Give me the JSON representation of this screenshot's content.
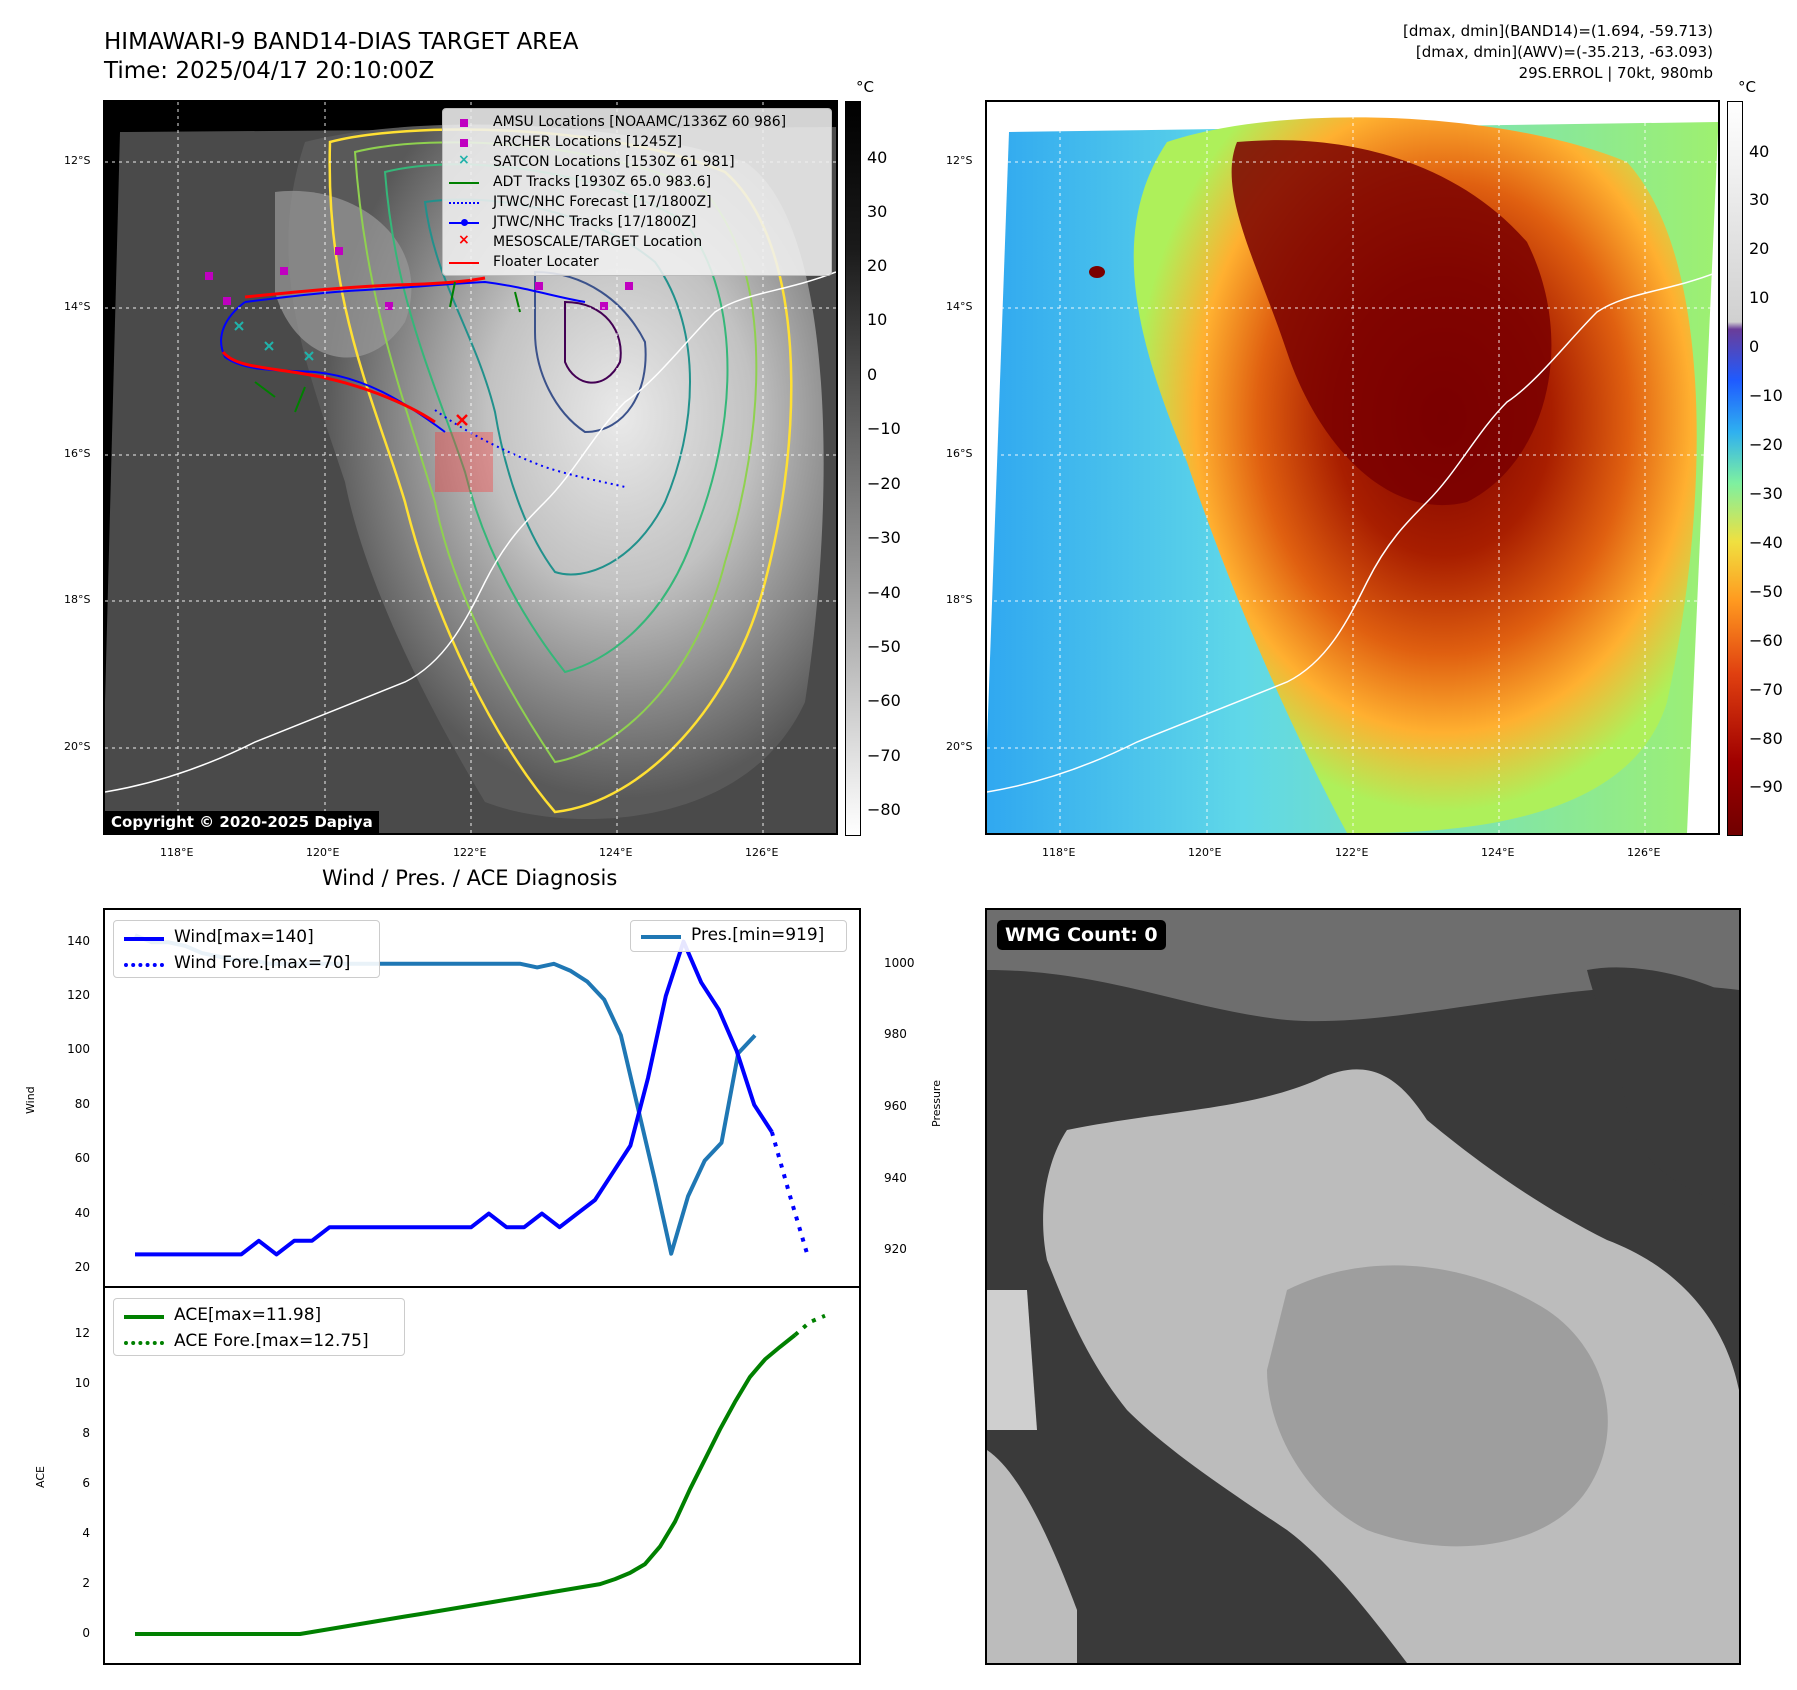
{
  "header": {
    "title_line1": "HIMAWARI-9 BAND14-DIAS TARGET AREA",
    "title_line2": "Time: 2025/04/17 20:10:00Z",
    "info_line1": "[dmax, dmin](BAND14)=(1.694, -59.713)",
    "info_line2": "[dmax, dmin](AWV)=(-35.213, -63.093)",
    "info_line3": "29S.ERROL | 70kt, 980mb"
  },
  "maps": {
    "lat_ticks": [
      "12°S",
      "14°S",
      "16°S",
      "18°S",
      "20°S"
    ],
    "lon_ticks": [
      "118°E",
      "120°E",
      "122°E",
      "124°E",
      "126°E"
    ],
    "copyright": "Copyright © 2020-2025 Dapiya",
    "colorbar_unit": "°C",
    "left_colorbar_ticks": [
      "40",
      "30",
      "20",
      "10",
      "0",
      "−10",
      "−20",
      "−30",
      "−40",
      "−50",
      "−60",
      "−70",
      "−80"
    ],
    "right_colorbar_ticks": [
      "40",
      "30",
      "20",
      "10",
      "0",
      "−10",
      "−20",
      "−30",
      "−40",
      "−50",
      "−60",
      "−70",
      "−80",
      "−90"
    ],
    "legend": [
      {
        "label": "AMSU Locations [NOAAMC/1336Z 60 986]",
        "color": "#c000c0",
        "marker": "square"
      },
      {
        "label": "ARCHER Locations [1245Z]",
        "color": "#c000c0",
        "marker": "square"
      },
      {
        "label": "SATCON Locations [1530Z 61 981]",
        "color": "#20b2aa",
        "marker": "x"
      },
      {
        "label": "ADT Tracks [1930Z 65.0 983.6]",
        "color": "#008000",
        "marker": "line"
      },
      {
        "label": "JTWC/NHC Forecast [17/1800Z]",
        "color": "#0000ff",
        "marker": "dotted"
      },
      {
        "label": "JTWC/NHC Tracks [17/1800Z]",
        "color": "#0000ff",
        "marker": "line-dot"
      },
      {
        "label": "MESOSCALE/TARGET Location",
        "color": "#ff0000",
        "marker": "x"
      },
      {
        "label": "Floater Locater",
        "color": "#ff0000",
        "marker": "line"
      }
    ]
  },
  "wmg": {
    "label": "WMG Count: 0"
  },
  "chart_data": [
    {
      "type": "line",
      "title": "Wind / Pres. / ACE Diagnosis",
      "ylabel": "Wind",
      "ylabel_right": "Pressure",
      "ylim": [
        20,
        145
      ],
      "ylim_right": [
        915,
        1010
      ],
      "yticks": [
        20,
        40,
        60,
        80,
        100,
        120,
        140
      ],
      "yticks_right": [
        920,
        940,
        960,
        980,
        1000
      ],
      "series": [
        {
          "name": "Wind[max=140]",
          "color": "#0000ff",
          "style": "solid",
          "values": [
            25,
            25,
            25,
            25,
            25,
            25,
            25,
            30,
            25,
            30,
            30,
            35,
            35,
            35,
            35,
            35,
            35,
            35,
            35,
            35,
            40,
            35,
            35,
            40,
            35,
            40,
            45,
            55,
            65,
            90,
            120,
            140,
            125,
            115,
            100,
            80,
            70
          ]
        },
        {
          "name": "Wind Fore.[max=70]",
          "color": "#0000ff",
          "style": "dotted",
          "start_index": 36,
          "values": [
            70,
            47,
            25
          ]
        },
        {
          "name": "Pres.[min=919]",
          "color": "#1f77b4",
          "style": "solid",
          "axis": "right",
          "values": [
            1008,
            1006,
            1006,
            1005,
            1003,
            1002,
            1001,
            1001,
            1000,
            1000,
            1000,
            1000,
            1000,
            1000,
            1000,
            1000,
            1000,
            1000,
            1000,
            1000,
            1000,
            1000,
            1000,
            1000,
            999,
            1000,
            998,
            995,
            990,
            980,
            960,
            940,
            919,
            935,
            945,
            950,
            975,
            980
          ]
        }
      ]
    },
    {
      "type": "line",
      "ylabel": "ACE",
      "ylim": [
        -0.6,
        13.3
      ],
      "yticks": [
        0,
        2,
        4,
        6,
        8,
        10,
        12
      ],
      "series": [
        {
          "name": "ACE[max=11.98]",
          "color": "#008000",
          "style": "solid",
          "values": [
            0,
            0,
            0,
            0,
            0,
            0,
            0,
            0,
            0,
            0,
            0,
            0,
            0.1,
            0.2,
            0.3,
            0.4,
            0.5,
            0.6,
            0.7,
            0.8,
            0.9,
            1.0,
            1.1,
            1.2,
            1.3,
            1.4,
            1.5,
            1.6,
            1.7,
            1.8,
            1.9,
            2.0,
            2.2,
            2.45,
            2.8,
            3.5,
            4.5,
            5.8,
            7.0,
            8.2,
            9.3,
            10.3,
            11.0,
            11.5,
            11.98
          ]
        },
        {
          "name": "ACE Fore.[max=12.75]",
          "color": "#008000",
          "style": "dotted",
          "start_index": 44,
          "values": [
            11.98,
            12.5,
            12.75
          ]
        }
      ]
    }
  ]
}
